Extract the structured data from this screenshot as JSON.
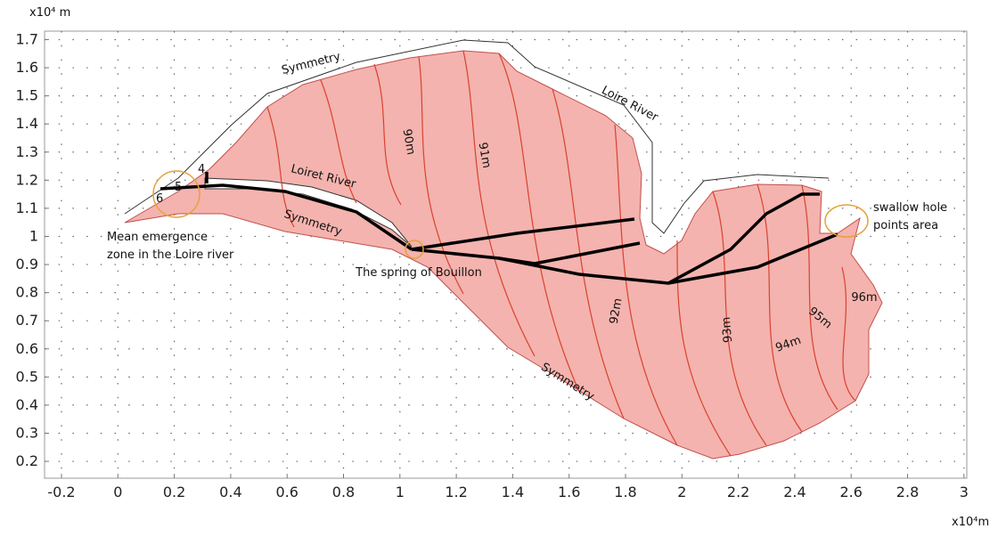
{
  "chart_data": {
    "type": "map",
    "x_unit": "x10⁴m",
    "y_unit": "x10⁴ m",
    "xlim": [
      -0.26,
      3.01
    ],
    "ylim": [
      0.14,
      1.73
    ],
    "xticks": [
      -0.2,
      0,
      0.2,
      0.4,
      0.6,
      0.8,
      1,
      1.2,
      1.4,
      1.6,
      1.8,
      2,
      2.2,
      2.4,
      2.6,
      2.8,
      3
    ],
    "yticks": [
      0.2,
      0.3,
      0.4,
      0.5,
      0.6,
      0.7,
      0.8,
      0.9,
      1,
      1.1,
      1.2,
      1.3,
      1.4,
      1.5,
      1.6,
      1.7
    ],
    "grid": true,
    "annotations": [
      "Symmetry",
      "Loire River",
      "Loiret River",
      "Symmetry",
      "Symmetry",
      "90m",
      "91m",
      "92m",
      "93m",
      "94m",
      "95m",
      "96m",
      "The spring of Bouillon",
      "4",
      "5",
      "6"
    ],
    "emergence_label": [
      "Mean emergence",
      "zone in the Loire river"
    ],
    "swallow_label": [
      "swallow hole",
      "points area"
    ]
  }
}
